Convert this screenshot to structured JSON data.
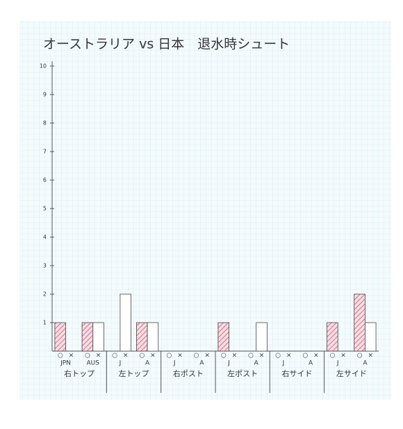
{
  "chart_data": {
    "type": "bar",
    "title": "オーストラリア vs 日本　退水時シュート",
    "categories": [
      "JPN",
      "AUS",
      "J",
      "A",
      "J",
      "A",
      "J",
      "A",
      "J",
      "A",
      "J",
      "A"
    ],
    "groups": [
      "右トップ",
      "左トップ",
      "右ポスト",
      "左ポスト",
      "右サイド",
      "左サイド"
    ],
    "series": [
      {
        "name": "○",
        "color": "#e8a0b0",
        "values": [
          1,
          1,
          0,
          1,
          0,
          0,
          1,
          0,
          0,
          0,
          1,
          2
        ]
      },
      {
        "name": "×",
        "color": "#ffffff",
        "values": [
          0,
          1,
          2,
          1,
          0,
          0,
          0,
          1,
          0,
          0,
          0,
          1
        ]
      }
    ],
    "ylim": [
      0,
      10
    ],
    "yticks": [
      1,
      2,
      3,
      4,
      5,
      6,
      7,
      8,
      9,
      10
    ]
  }
}
